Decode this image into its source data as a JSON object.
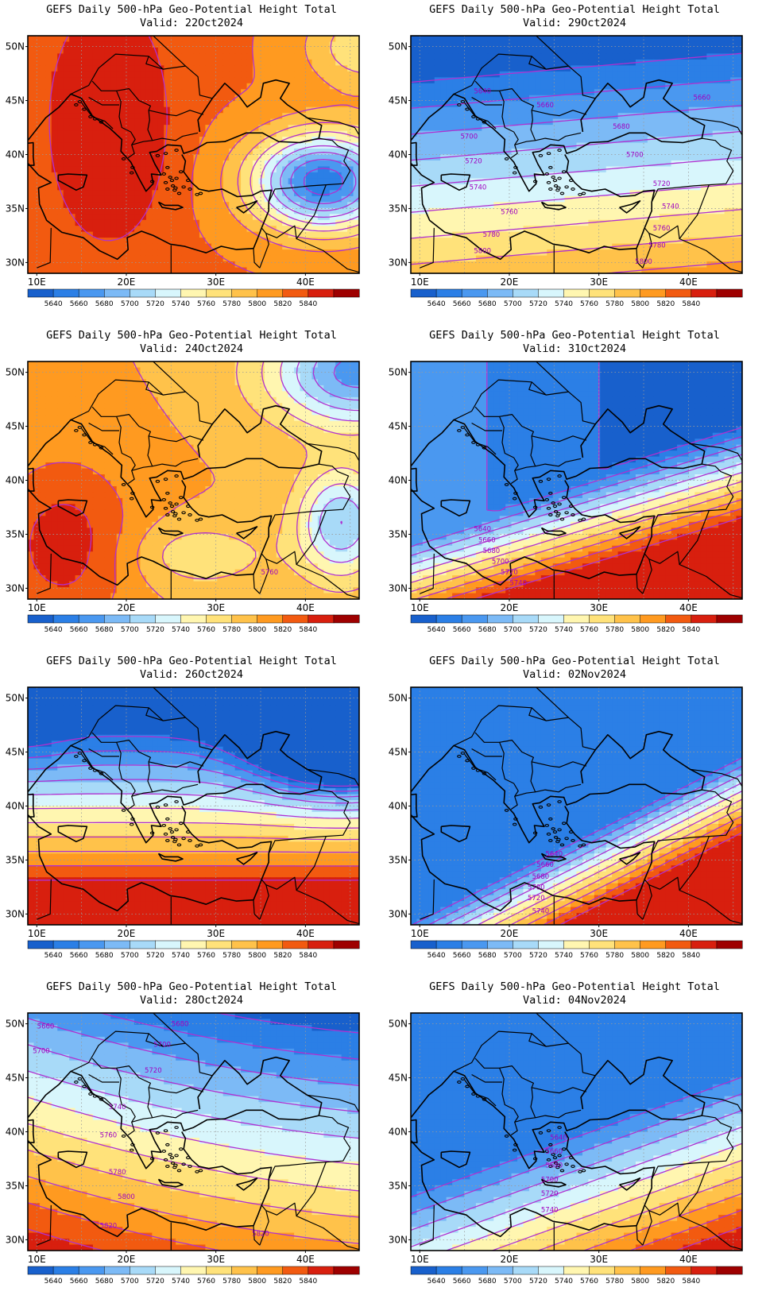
{
  "product_title": "GEFS Daily 500-hPa Geo-Potential Height Total",
  "valid_prefix": "Valid:",
  "lat_ticks": [
    "50N",
    "45N",
    "40N",
    "35N",
    "30N"
  ],
  "lon_ticks": [
    "10E",
    "20E",
    "30E",
    "40E"
  ],
  "colorbar_labels": [
    "5640",
    "5660",
    "5680",
    "5700",
    "5720",
    "5740",
    "5760",
    "5780",
    "5800",
    "5820",
    "5840"
  ],
  "colorbar_colors": [
    "#1860cc",
    "#2b7fe6",
    "#4a98f0",
    "#7cbaf6",
    "#a8daf8",
    "#d8f6fc",
    "#fff6b0",
    "#ffe27a",
    "#ffc24a",
    "#ff9a20",
    "#f25a10",
    "#d81f0e",
    "#9e0000"
  ],
  "contour_color": "#b030d0",
  "panels": [
    {
      "date": "22Oct2024",
      "labels": []
    },
    {
      "date": "29Oct2024",
      "labels": [
        {
          "text": "5640",
          "lon": 17,
          "lat": 45.9
        },
        {
          "text": "5660",
          "lon": 24,
          "lat": 44.6
        },
        {
          "text": "5660",
          "lon": 41.5,
          "lat": 45.3
        },
        {
          "text": "5680",
          "lon": 32.5,
          "lat": 42.6
        },
        {
          "text": "5700",
          "lon": 15.5,
          "lat": 41.7
        },
        {
          "text": "5700",
          "lon": 34,
          "lat": 40
        },
        {
          "text": "5720",
          "lon": 16,
          "lat": 39.4
        },
        {
          "text": "5720",
          "lon": 37,
          "lat": 37.3
        },
        {
          "text": "5740",
          "lon": 16.5,
          "lat": 37
        },
        {
          "text": "5740",
          "lon": 38,
          "lat": 35.2
        },
        {
          "text": "5760",
          "lon": 20,
          "lat": 34.7
        },
        {
          "text": "5760",
          "lon": 37,
          "lat": 33.2
        },
        {
          "text": "5780",
          "lon": 18,
          "lat": 32.6
        },
        {
          "text": "5780",
          "lon": 36.5,
          "lat": 31.6
        },
        {
          "text": "5800",
          "lon": 17,
          "lat": 31.1
        },
        {
          "text": "5800",
          "lon": 35,
          "lat": 30.1
        }
      ]
    },
    {
      "date": "24Oct2024",
      "labels": [
        {
          "text": "5760",
          "lon": 36,
          "lat": 31.5
        }
      ]
    },
    {
      "date": "31Oct2024",
      "labels": [
        {
          "text": "5640",
          "lon": 17,
          "lat": 35.5
        },
        {
          "text": "5660",
          "lon": 17.5,
          "lat": 34.5
        },
        {
          "text": "5680",
          "lon": 18,
          "lat": 33.5
        },
        {
          "text": "5700",
          "lon": 19,
          "lat": 32.5
        },
        {
          "text": "5720",
          "lon": 20,
          "lat": 31.5
        },
        {
          "text": "5740",
          "lon": 21,
          "lat": 30.5
        }
      ]
    },
    {
      "date": "26Oct2024",
      "labels": []
    },
    {
      "date": "02Nov2024",
      "labels": [
        {
          "text": "5640",
          "lon": 25,
          "lat": 35.6
        },
        {
          "text": "5660",
          "lon": 24,
          "lat": 34.6
        },
        {
          "text": "5680",
          "lon": 23.5,
          "lat": 33.5
        },
        {
          "text": "5700",
          "lon": 23,
          "lat": 32.5
        },
        {
          "text": "5720",
          "lon": 23,
          "lat": 31.5
        },
        {
          "text": "5740",
          "lon": 23.5,
          "lat": 30.3
        }
      ]
    },
    {
      "date": "28Oct2024",
      "labels": [
        {
          "text": "5660",
          "lon": 11,
          "lat": 49.8
        },
        {
          "text": "5680",
          "lon": 26,
          "lat": 50
        },
        {
          "text": "5700",
          "lon": 10.5,
          "lat": 47.5
        },
        {
          "text": "5700",
          "lon": 24,
          "lat": 48.1
        },
        {
          "text": "5720",
          "lon": 23,
          "lat": 45.7
        },
        {
          "text": "5740",
          "lon": 19,
          "lat": 42.3
        },
        {
          "text": "5760",
          "lon": 18,
          "lat": 39.7
        },
        {
          "text": "5780",
          "lon": 19,
          "lat": 36.3
        },
        {
          "text": "5800",
          "lon": 20,
          "lat": 34
        },
        {
          "text": "5820",
          "lon": 18,
          "lat": 31.3
        },
        {
          "text": "5820",
          "lon": 35,
          "lat": 30.6
        }
      ]
    },
    {
      "date": "04Nov2024",
      "labels": [
        {
          "text": "5640",
          "lon": 25.5,
          "lat": 39.5
        },
        {
          "text": "5660",
          "lon": 25,
          "lat": 38.2
        },
        {
          "text": "5680",
          "lon": 25,
          "lat": 36.9
        },
        {
          "text": "5700",
          "lon": 24.5,
          "lat": 35.6
        },
        {
          "text": "5720",
          "lon": 24.5,
          "lat": 34.3
        },
        {
          "text": "5740",
          "lon": 24.5,
          "lat": 32.8
        }
      ]
    }
  ]
}
